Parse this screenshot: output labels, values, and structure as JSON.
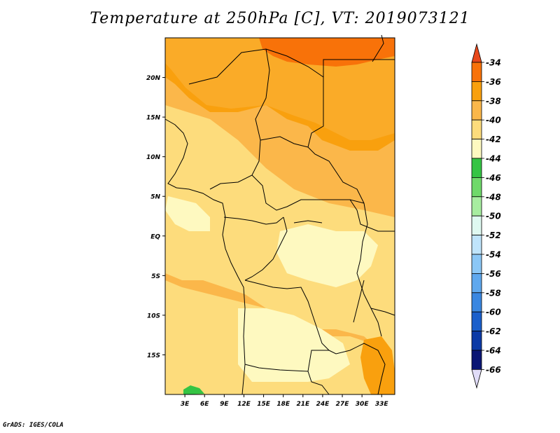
{
  "title": "Temperature at 250hPa [C], VT: 2019073121",
  "footer": "GrADS: IGES/COLA",
  "map": {
    "region": "Central Africa",
    "lon_range": [
      0,
      35
    ],
    "lat_range": [
      -20,
      25
    ],
    "lat_ticks": [
      {
        "label": "20N",
        "value": 20
      },
      {
        "label": "15N",
        "value": 15
      },
      {
        "label": "10N",
        "value": 10
      },
      {
        "label": "5N",
        "value": 5
      },
      {
        "label": "EQ",
        "value": 0
      },
      {
        "label": "5S",
        "value": -5
      },
      {
        "label": "10S",
        "value": -10
      },
      {
        "label": "15S",
        "value": -15
      }
    ],
    "lon_ticks": [
      {
        "label": "3E",
        "value": 3
      },
      {
        "label": "6E",
        "value": 6
      },
      {
        "label": "9E",
        "value": 9
      },
      {
        "label": "12E",
        "value": 12
      },
      {
        "label": "15E",
        "value": 15
      },
      {
        "label": "18E",
        "value": 18
      },
      {
        "label": "21E",
        "value": 21
      },
      {
        "label": "24E",
        "value": 24
      },
      {
        "label": "27E",
        "value": 27
      },
      {
        "label": "30E",
        "value": 30
      },
      {
        "label": "33E",
        "value": 33
      }
    ]
  },
  "colorbar": {
    "labels": [
      "-34",
      "-36",
      "-38",
      "-40",
      "-42",
      "-44",
      "-46",
      "-48",
      "-50",
      "-52",
      "-54",
      "-56",
      "-58",
      "-60",
      "-62",
      "-64",
      "-66"
    ],
    "colors": [
      "#e8481b",
      "#f87209",
      "#f9a00e",
      "#fbb74a",
      "#fddc7c",
      "#fef9c0",
      "#35c444",
      "#6fd96a",
      "#a7eda0",
      "#dff9f1",
      "#bfe4fb",
      "#8bc7f6",
      "#5fa8ee",
      "#3a87e1",
      "#1a5fcb",
      "#0c3aa6",
      "#0a1674",
      "#e0dcf8"
    ]
  }
}
